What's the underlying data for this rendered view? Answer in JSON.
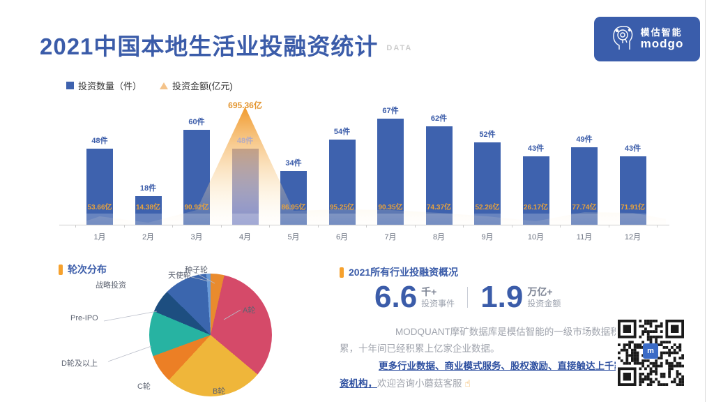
{
  "header": {
    "title": "2021中国本地生活业投融资统计",
    "title_suffix": "DATA",
    "logo": {
      "brand_cn": "模估智能",
      "brand_en": "modgo",
      "bg_color": "#3a5dab"
    }
  },
  "legend": {
    "count_label": "投资数量（件）",
    "amount_label": "投资金额(亿元)",
    "count_color": "#3e62ae",
    "amount_color": "#f4c38a"
  },
  "chart_data": [
    {
      "type": "bar",
      "subtype": "bar+area-combo",
      "title": "2021中国本地生活业投融资统计",
      "categories": [
        "1月",
        "2月",
        "3月",
        "4月",
        "5月",
        "6月",
        "7月",
        "8月",
        "9月",
        "10月",
        "11月",
        "12月"
      ],
      "series": [
        {
          "name": "投资数量（件）",
          "render": "bar",
          "unit": "件",
          "values": [
            48,
            18,
            60,
            48,
            34,
            54,
            67,
            62,
            52,
            43,
            49,
            43
          ],
          "color": "#3e62ae"
        },
        {
          "name": "投资金额(亿元)",
          "render": "area",
          "unit": "亿",
          "values": [
            53.66,
            14.38,
            90.92,
            695.36,
            86.95,
            95.25,
            90.35,
            74.37,
            52.26,
            26.17,
            77.74,
            71.91
          ],
          "color": "#f09a2f"
        }
      ],
      "highlight_category": "4月",
      "ylim_bar": [
        0,
        70
      ],
      "ylim_area": [
        0,
        700
      ],
      "grid": false,
      "legend_position": "top-left"
    },
    {
      "type": "pie",
      "title": "轮次分布",
      "slices": [
        {
          "label": "种子轮",
          "pct": 3.6,
          "color": "#e98b2e"
        },
        {
          "label": "A轮",
          "pct": 32.5,
          "color": "#d54a69"
        },
        {
          "label": "B轮",
          "pct": 25.8,
          "color": "#efb63a"
        },
        {
          "label": "C轮",
          "pct": 7.5,
          "color": "#ec7f25"
        },
        {
          "label": "D轮及以上",
          "pct": 11.9,
          "color": "#27b3a2"
        },
        {
          "label": "Pre-IPO",
          "pct": 6.1,
          "color": "#1d4e80"
        },
        {
          "label": "战略投资",
          "pct": 11.5,
          "color": "#3b66ae"
        },
        {
          "label": "天使轮",
          "pct": 1.1,
          "color": "#6a9bd8"
        }
      ],
      "legend_position": "labels-around"
    }
  ],
  "sections": {
    "pie_title": "轮次分布",
    "overview_title": "2021所有行业投融资概况"
  },
  "overview": {
    "stats": [
      {
        "value": "6.6",
        "unit": "千+",
        "caption": "投资事件"
      },
      {
        "value": "1.9",
        "unit": "万亿+",
        "caption": "投资金额"
      }
    ],
    "desc_line1": "MODQUANT摩矿数据库是模估智能的一级市场数据积累，十年间已经积累上亿家企业数据。",
    "desc_bold": "更多行业数据、商业模式服务、股权激励、直接触达上千家投资机构，",
    "desc_tail": "欢迎咨询小蘑菇客服",
    "pointer_icon": "☝"
  },
  "colors": {
    "title_blue": "#3b5ca9",
    "bar_blue": "#3e62ae",
    "bar_highlight": "#7d88c8",
    "amount_orange": "#e8a33d",
    "accent_orange": "#f6a12d"
  }
}
